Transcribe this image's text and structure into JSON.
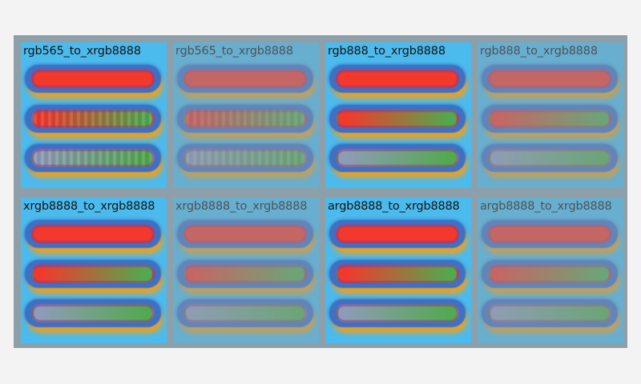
{
  "page": {
    "background": "#f3f3f3"
  },
  "frame": {
    "background": "#8da0aa"
  },
  "palette": {
    "frame_bg": "#8da0aa",
    "cell_bg": "#4bbaed",
    "ring_blue": "#3e70c4",
    "glow_orange": "#f0a11c",
    "red": "#f2392c",
    "green": "#52a94e",
    "slate": "#8f9cb8",
    "rim_purple": "#8b3a89",
    "title_color": "#151515"
  },
  "bars": [
    {
      "name": "solid-red-bar",
      "colors": [
        "#f2392c"
      ]
    },
    {
      "name": "red-to-green-gradient-bar",
      "colors": [
        "#f2392c",
        "#52a94e"
      ]
    },
    {
      "name": "slate-to-green-gradient-bar",
      "colors": [
        "#8f9cb8",
        "#52a94e"
      ]
    }
  ],
  "cells": [
    {
      "title": "rgb565_to_xrgb8888",
      "faded": false,
      "banded": true
    },
    {
      "title": "rgb565_to_xrgb8888",
      "faded": true,
      "banded": true
    },
    {
      "title": "rgb888_to_xrgb8888",
      "faded": false,
      "banded": false
    },
    {
      "title": "rgb888_to_xrgb8888",
      "faded": true,
      "banded": false
    },
    {
      "title": "xrgb8888_to_xrgb8888",
      "faded": false,
      "banded": false
    },
    {
      "title": "xrgb8888_to_xrgb8888",
      "faded": true,
      "banded": false
    },
    {
      "title": "argb8888_to_xrgb8888",
      "faded": false,
      "banded": false
    },
    {
      "title": "argb8888_to_xrgb8888",
      "faded": true,
      "banded": false
    }
  ]
}
